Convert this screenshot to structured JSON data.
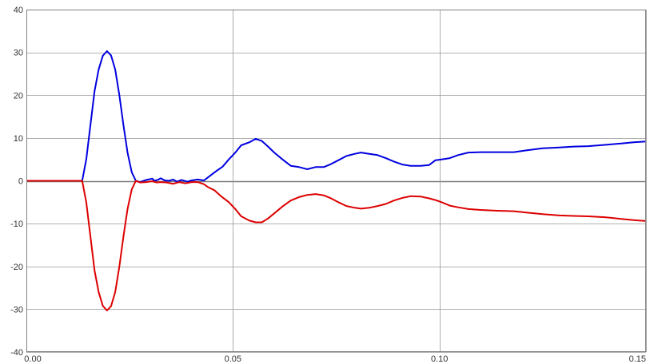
{
  "chart_data": {
    "type": "line",
    "title": "",
    "xlabel": "",
    "ylabel": "",
    "xlim": [
      0.0,
      0.15
    ],
    "ylim": [
      -40,
      40
    ],
    "x_ticks": [
      0.0,
      0.05,
      0.1,
      0.15
    ],
    "x_tick_labels": [
      "0.00",
      "0.05",
      "0.10",
      "0.15"
    ],
    "y_ticks": [
      40,
      30,
      20,
      10,
      0,
      -10,
      -20,
      -30,
      -40
    ],
    "y_tick_labels": [
      "40",
      "30",
      "20",
      "10",
      "0",
      "-10",
      "-20",
      "-30",
      "-40"
    ],
    "grid": true,
    "legend": "none",
    "colors": {
      "grid": "#999999",
      "axis": "#808080",
      "frame": "#808080",
      "zero_line": "#7a7a7a"
    },
    "series": [
      {
        "color": "#0000e0",
        "points": [
          [
            0.0,
            0
          ],
          [
            0.0135,
            0
          ],
          [
            0.0145,
            5
          ],
          [
            0.0155,
            13
          ],
          [
            0.0165,
            21
          ],
          [
            0.0175,
            26
          ],
          [
            0.0185,
            29.2
          ],
          [
            0.0195,
            30.3
          ],
          [
            0.0205,
            29.3
          ],
          [
            0.0215,
            26
          ],
          [
            0.0225,
            20
          ],
          [
            0.0235,
            13
          ],
          [
            0.0245,
            6.5
          ],
          [
            0.0255,
            2
          ],
          [
            0.0265,
            0
          ],
          [
            0.0275,
            -0.3
          ],
          [
            0.029,
            0.2
          ],
          [
            0.0305,
            0.5
          ],
          [
            0.031,
            0
          ],
          [
            0.032,
            0.3
          ],
          [
            0.0325,
            0.6
          ],
          [
            0.0335,
            0.1
          ],
          [
            0.0345,
            0
          ],
          [
            0.0355,
            0.3
          ],
          [
            0.0365,
            -0.2
          ],
          [
            0.0375,
            0.2
          ],
          [
            0.039,
            -0.2
          ],
          [
            0.04,
            0.1
          ],
          [
            0.0415,
            0.3
          ],
          [
            0.043,
            0.1
          ],
          [
            0.0445,
            1.2
          ],
          [
            0.046,
            2.3
          ],
          [
            0.0475,
            3.3
          ],
          [
            0.049,
            5
          ],
          [
            0.0505,
            6.5
          ],
          [
            0.052,
            8.3
          ],
          [
            0.054,
            9
          ],
          [
            0.0555,
            9.8
          ],
          [
            0.057,
            9.3
          ],
          [
            0.0585,
            8
          ],
          [
            0.06,
            6.6
          ],
          [
            0.062,
            5
          ],
          [
            0.064,
            3.5
          ],
          [
            0.066,
            3.2
          ],
          [
            0.068,
            2.7
          ],
          [
            0.07,
            3.2
          ],
          [
            0.072,
            3.2
          ],
          [
            0.0735,
            3.8
          ],
          [
            0.0755,
            4.8
          ],
          [
            0.0775,
            5.8
          ],
          [
            0.0795,
            6.3
          ],
          [
            0.081,
            6.6
          ],
          [
            0.083,
            6.3
          ],
          [
            0.085,
            6
          ],
          [
            0.087,
            5.3
          ],
          [
            0.089,
            4.5
          ],
          [
            0.091,
            3.8
          ],
          [
            0.093,
            3.5
          ],
          [
            0.0955,
            3.5
          ],
          [
            0.0975,
            3.7
          ],
          [
            0.099,
            4.8
          ],
          [
            0.1005,
            5
          ],
          [
            0.1025,
            5.3
          ],
          [
            0.1045,
            6
          ],
          [
            0.107,
            6.6
          ],
          [
            0.11,
            6.7
          ],
          [
            0.114,
            6.7
          ],
          [
            0.118,
            6.7
          ],
          [
            0.121,
            7.1
          ],
          [
            0.125,
            7.6
          ],
          [
            0.129,
            7.8
          ],
          [
            0.1325,
            8
          ],
          [
            0.136,
            8.1
          ],
          [
            0.14,
            8.4
          ],
          [
            0.144,
            8.7
          ],
          [
            0.147,
            9
          ],
          [
            0.15,
            9.2
          ]
        ]
      },
      {
        "color": "#dd0000",
        "points": [
          [
            0.0,
            0
          ],
          [
            0.0135,
            0
          ],
          [
            0.0145,
            -5
          ],
          [
            0.0155,
            -13
          ],
          [
            0.0165,
            -21
          ],
          [
            0.0175,
            -26
          ],
          [
            0.0185,
            -29.2
          ],
          [
            0.0195,
            -30.3
          ],
          [
            0.0205,
            -29.3
          ],
          [
            0.0215,
            -26
          ],
          [
            0.0225,
            -20
          ],
          [
            0.0235,
            -13
          ],
          [
            0.0245,
            -6.5
          ],
          [
            0.0255,
            -2
          ],
          [
            0.0265,
            0
          ],
          [
            0.0275,
            -0.4
          ],
          [
            0.029,
            -0.3
          ],
          [
            0.0305,
            -0.1
          ],
          [
            0.0315,
            -0.4
          ],
          [
            0.0325,
            -0.3
          ],
          [
            0.034,
            -0.4
          ],
          [
            0.0355,
            -0.7
          ],
          [
            0.037,
            -0.3
          ],
          [
            0.0385,
            -0.6
          ],
          [
            0.04,
            -0.3
          ],
          [
            0.0415,
            -0.3
          ],
          [
            0.043,
            -0.8
          ],
          [
            0.044,
            -1.5
          ],
          [
            0.0455,
            -2.2
          ],
          [
            0.047,
            -3.5
          ],
          [
            0.049,
            -5
          ],
          [
            0.0505,
            -6.5
          ],
          [
            0.052,
            -8.3
          ],
          [
            0.054,
            -9.3
          ],
          [
            0.0555,
            -9.7
          ],
          [
            0.057,
            -9.7
          ],
          [
            0.0585,
            -8.8
          ],
          [
            0.06,
            -7.6
          ],
          [
            0.062,
            -6
          ],
          [
            0.064,
            -4.6
          ],
          [
            0.066,
            -3.8
          ],
          [
            0.068,
            -3.3
          ],
          [
            0.07,
            -3.1
          ],
          [
            0.072,
            -3.4
          ],
          [
            0.0735,
            -4
          ],
          [
            0.0755,
            -5
          ],
          [
            0.0775,
            -5.9
          ],
          [
            0.0795,
            -6.3
          ],
          [
            0.081,
            -6.5
          ],
          [
            0.083,
            -6.3
          ],
          [
            0.085,
            -5.9
          ],
          [
            0.087,
            -5.4
          ],
          [
            0.089,
            -4.6
          ],
          [
            0.091,
            -4
          ],
          [
            0.093,
            -3.6
          ],
          [
            0.0955,
            -3.7
          ],
          [
            0.0975,
            -4.1
          ],
          [
            0.099,
            -4.5
          ],
          [
            0.1005,
            -5
          ],
          [
            0.1025,
            -5.8
          ],
          [
            0.1045,
            -6.2
          ],
          [
            0.107,
            -6.6
          ],
          [
            0.11,
            -6.8
          ],
          [
            0.114,
            -7
          ],
          [
            0.118,
            -7.1
          ],
          [
            0.121,
            -7.4
          ],
          [
            0.125,
            -7.8
          ],
          [
            0.129,
            -8.1
          ],
          [
            0.1325,
            -8.2
          ],
          [
            0.136,
            -8.3
          ],
          [
            0.14,
            -8.5
          ],
          [
            0.144,
            -8.9
          ],
          [
            0.147,
            -9.2
          ],
          [
            0.15,
            -9.4
          ]
        ]
      }
    ]
  }
}
